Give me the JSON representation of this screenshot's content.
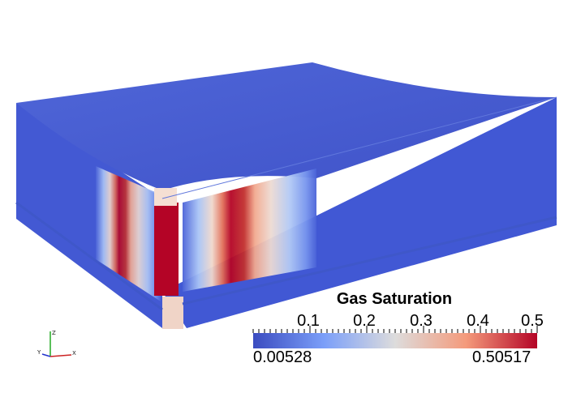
{
  "legend": {
    "title": "Gas Saturation",
    "min_label": "0.00528",
    "max_label": "0.50517",
    "ticks": [
      "0.1",
      "0.2",
      "0.3",
      "0.4",
      "0.5"
    ],
    "colormap": [
      "#3b4cc0",
      "#7b9ff9",
      "#dddcdc",
      "#f49a7b",
      "#b40426"
    ]
  },
  "axes": {
    "x": "X",
    "y": "Y",
    "z": "Z"
  },
  "colors": {
    "reservoir_blue": "#4158d4",
    "hot_red": "#b40426"
  }
}
